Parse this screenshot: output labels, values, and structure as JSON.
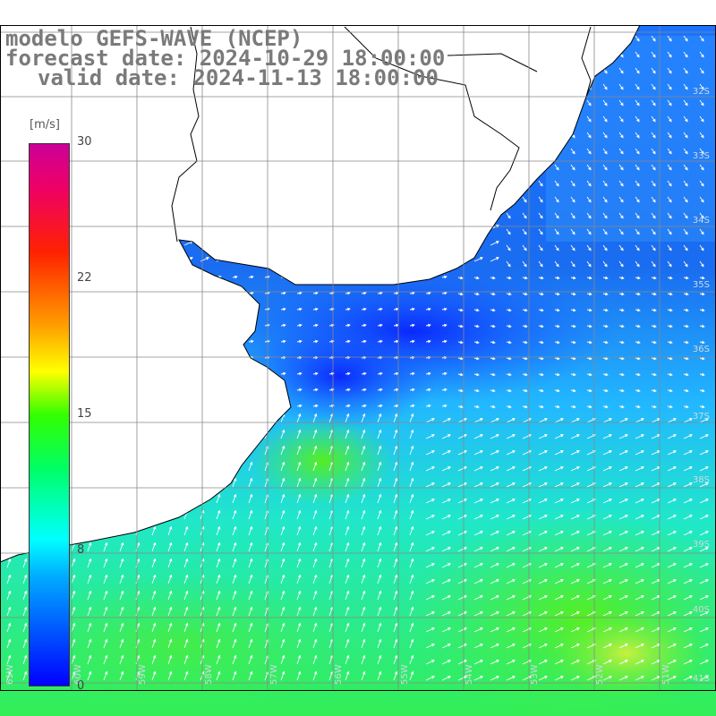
{
  "header": {
    "line1": "modelo GEFS-WAVE (NCEP)",
    "line2": "forecast date: 2024-10-29 18:00:00",
    "line3": "valid date: 2024-11-13 18:00:00"
  },
  "colorbar": {
    "unit": "[m/s]",
    "ticks": [
      "30",
      "22",
      "15",
      "8",
      "0"
    ],
    "tick_values": [
      30,
      22,
      15,
      8,
      0
    ],
    "range": [
      0,
      30
    ],
    "colors": [
      "#0000ff",
      "#00aaff",
      "#00ffff",
      "#00ff66",
      "#33ff00",
      "#ffff00",
      "#ff9900",
      "#ff2200",
      "#ee0066",
      "#cc0099"
    ]
  },
  "map": {
    "lat_labels": [
      "32S",
      "33S",
      "34S",
      "35S",
      "36S",
      "37S",
      "38S",
      "39S",
      "40S",
      "41S"
    ],
    "lon_labels": [
      "61W",
      "60W",
      "59W",
      "58W",
      "57W",
      "56W",
      "55W",
      "54W",
      "53W",
      "52W",
      "51W"
    ],
    "wind_field": "wind speed and direction arrows",
    "land_color": "#ffffff",
    "grid_color": "#888888"
  }
}
